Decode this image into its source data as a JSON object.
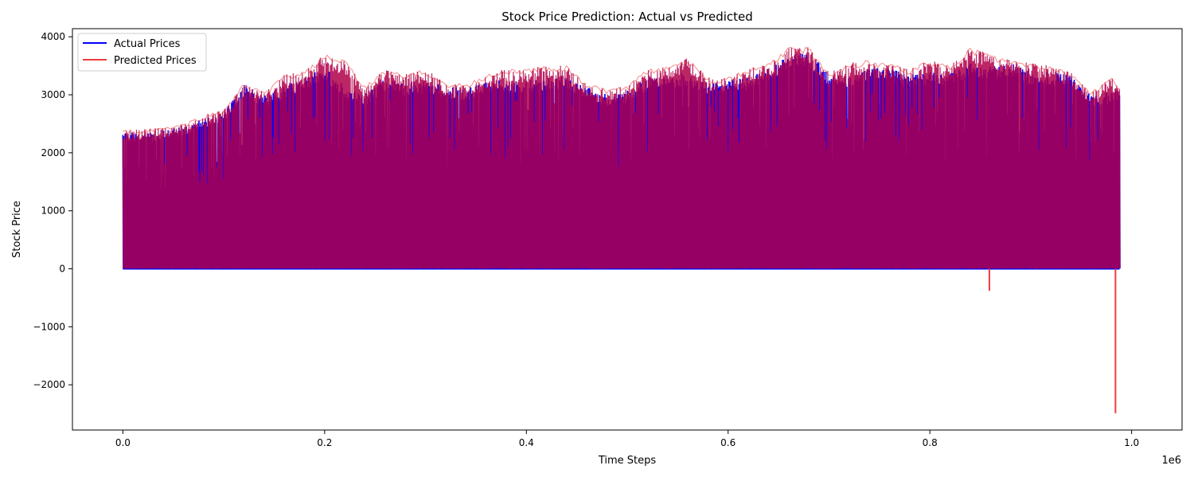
{
  "chart_data": {
    "type": "line",
    "title": "Stock Price Prediction: Actual vs Predicted",
    "xlabel": "Time Steps",
    "ylabel": "Stock Price",
    "x_offset_label": "1e6",
    "xlim": [
      -0.05,
      1.05
    ],
    "ylim": [
      -2780,
      4140
    ],
    "x_ticks": [
      0.0,
      0.2,
      0.4,
      0.6,
      0.8,
      1.0
    ],
    "x_tick_labels": [
      "0.0",
      "0.2",
      "0.4",
      "0.6",
      "0.8",
      "1.0"
    ],
    "y_ticks": [
      -2000,
      -1000,
      0,
      1000,
      2000,
      3000,
      4000
    ],
    "y_tick_labels": [
      "−2000",
      "−1000",
      "0",
      "1000",
      "2000",
      "3000",
      "4000"
    ],
    "grid": false,
    "legend_position": "top-left",
    "series": [
      {
        "name": "Actual Prices",
        "color": "#0000ff",
        "envelope_x": [
          0.0,
          0.02,
          0.04,
          0.06,
          0.08,
          0.1,
          0.12,
          0.14,
          0.16,
          0.18,
          0.2,
          0.22,
          0.24,
          0.26,
          0.28,
          0.3,
          0.32,
          0.34,
          0.36,
          0.38,
          0.4,
          0.42,
          0.44,
          0.46,
          0.48,
          0.5,
          0.52,
          0.54,
          0.56,
          0.58,
          0.6,
          0.62,
          0.64,
          0.66,
          0.68,
          0.7,
          0.72,
          0.74,
          0.76,
          0.78,
          0.8,
          0.82,
          0.84,
          0.86,
          0.88,
          0.9,
          0.92,
          0.94,
          0.96,
          0.98,
          0.988
        ],
        "envelope_high": [
          2380,
          2320,
          2390,
          2450,
          2600,
          2720,
          3180,
          3000,
          3150,
          3300,
          3480,
          3150,
          3000,
          3300,
          3200,
          3250,
          3150,
          3100,
          3250,
          3250,
          3250,
          3300,
          3320,
          3150,
          3000,
          3080,
          3300,
          3350,
          3380,
          3200,
          3250,
          3300,
          3450,
          3700,
          3750,
          3350,
          3350,
          3480,
          3450,
          3350,
          3400,
          3400,
          3550,
          3500,
          3550,
          3400,
          3400,
          3350,
          3000,
          3050,
          3100
        ],
        "envelope_low": [
          0,
          0,
          0,
          0,
          0,
          0,
          0,
          0,
          0,
          0,
          0,
          0,
          0,
          0,
          0,
          0,
          0,
          0,
          0,
          0,
          0,
          0,
          0,
          0,
          0,
          0,
          0,
          0,
          0,
          0,
          0,
          0,
          0,
          0,
          0,
          0,
          0,
          0,
          0,
          0,
          0,
          0,
          0,
          0,
          0,
          0,
          0,
          0,
          0,
          0,
          0
        ]
      },
      {
        "name": "Predicted Prices",
        "color": "#f03c3c",
        "envelope_x": [
          0.0,
          0.02,
          0.04,
          0.06,
          0.08,
          0.1,
          0.12,
          0.14,
          0.16,
          0.18,
          0.2,
          0.22,
          0.24,
          0.26,
          0.28,
          0.3,
          0.32,
          0.34,
          0.36,
          0.38,
          0.4,
          0.42,
          0.44,
          0.46,
          0.48,
          0.5,
          0.52,
          0.54,
          0.56,
          0.58,
          0.6,
          0.62,
          0.64,
          0.66,
          0.68,
          0.7,
          0.72,
          0.74,
          0.76,
          0.78,
          0.8,
          0.82,
          0.84,
          0.86,
          0.88,
          0.9,
          0.92,
          0.94,
          0.96,
          0.98,
          0.988
        ],
        "envelope_high": [
          2400,
          2400,
          2450,
          2500,
          2650,
          2750,
          3200,
          3050,
          3350,
          3400,
          3700,
          3600,
          3150,
          3450,
          3350,
          3450,
          3200,
          3200,
          3350,
          3450,
          3450,
          3500,
          3500,
          3200,
          3100,
          3150,
          3450,
          3500,
          3650,
          3300,
          3300,
          3450,
          3550,
          3820,
          3820,
          3400,
          3550,
          3600,
          3550,
          3450,
          3600,
          3500,
          3820,
          3700,
          3600,
          3550,
          3500,
          3400,
          3050,
          3300,
          3150
        ],
        "envelope_low": [
          0,
          0,
          0,
          0,
          0,
          0,
          0,
          0,
          0,
          0,
          0,
          0,
          0,
          0,
          0,
          0,
          0,
          0,
          0,
          0,
          0,
          0,
          0,
          0,
          0,
          0,
          0,
          0,
          0,
          0,
          0,
          0,
          0,
          0,
          0,
          0,
          0,
          0,
          0,
          0,
          0,
          0,
          0,
          0,
          0,
          0,
          0,
          0,
          0,
          0,
          0
        ],
        "spikes": [
          {
            "x": 0.859,
            "y": -380
          },
          {
            "x": 0.984,
            "y": -2490
          }
        ]
      }
    ],
    "overlap_color": "#b0004a"
  }
}
